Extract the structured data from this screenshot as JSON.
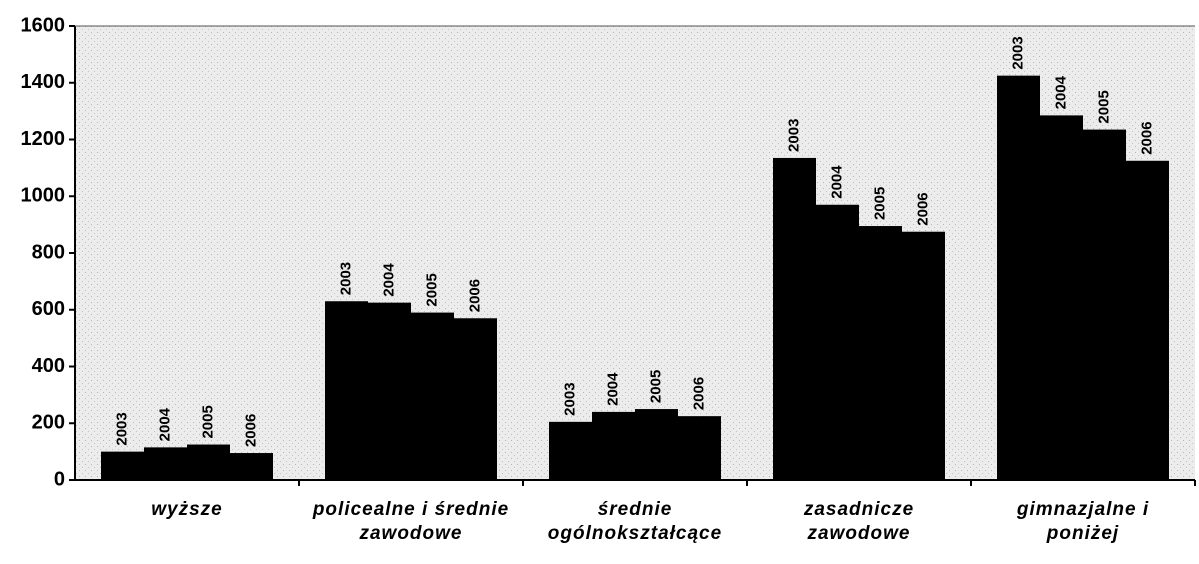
{
  "chart_data": {
    "type": "bar",
    "categories": [
      "wyższe",
      "policealne i średnie zawodowe",
      "średnie ogólnokształcące",
      "zasadnicze zawodowe",
      "gimnazjalne i poniżej"
    ],
    "series": [
      {
        "name": "2003",
        "color": "#000000",
        "values": [
          100,
          630,
          205,
          1135,
          1425
        ]
      },
      {
        "name": "2004",
        "color": "#000000",
        "values": [
          115,
          625,
          240,
          970,
          1285
        ]
      },
      {
        "name": "2005",
        "color": "#000000",
        "values": [
          125,
          590,
          250,
          895,
          1235
        ]
      },
      {
        "name": "2006",
        "color": "#000000",
        "values": [
          95,
          570,
          225,
          875,
          1125
        ]
      }
    ],
    "ylim": [
      0,
      1600
    ],
    "yticks": [
      0,
      200,
      400,
      600,
      800,
      1000,
      1200,
      1400,
      1600
    ]
  }
}
